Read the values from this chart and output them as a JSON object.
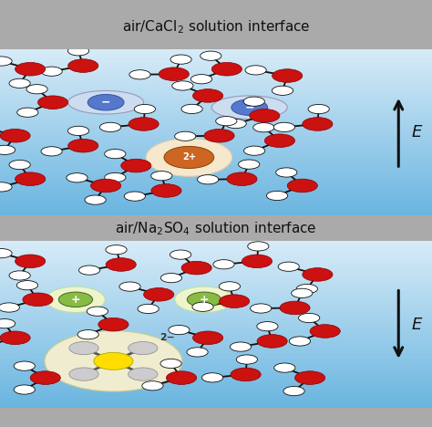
{
  "title_top": "air/CaCl$_2$ solution interface",
  "title_bottom": "air/Na$_2$SO$_4$ solution interface",
  "water_O_color": "#cc1111",
  "water_H_color": "#ffffff",
  "water_bond_color": "#111111",
  "anion_color": "#5577cc",
  "anion_halo": "#ccddf0",
  "cation_color": "#cc6622",
  "cation_halo": "#f5e8cc",
  "na_color": "#88bb44",
  "na_halo": "#eef5cc",
  "sulfate_S_color": "#ffdd00",
  "sulfate_O_color": "#cccccc",
  "arrow_color": "#111111",
  "panel_blue_light": "#c8dff0",
  "panel_blue_mid": "#7abfe8",
  "gray_bar": "#c0c0c0"
}
